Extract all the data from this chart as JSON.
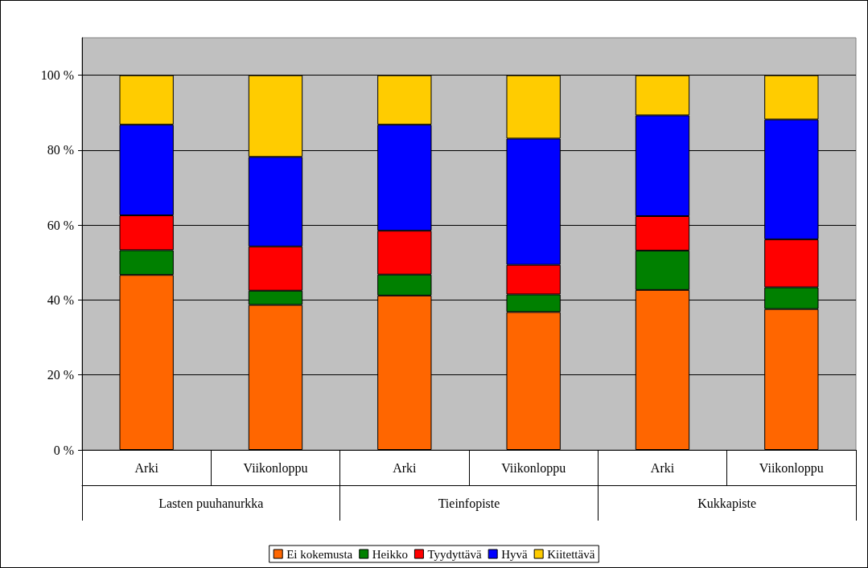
{
  "chart_data": {
    "type": "bar",
    "stacked": true,
    "categories": [
      "Arki",
      "Viikonloppu",
      "Arki",
      "Viikonloppu",
      "Arki",
      "Viikonloppu"
    ],
    "annotations": [
      "Lasten puuhanurkka",
      "Tieinfopiste",
      "Kukkapiste"
    ],
    "series": [
      {
        "name": "Ei kokemusta",
        "color": "#ff6600",
        "values": [
          46.7,
          38.7,
          41.2,
          36.8,
          42.7,
          37.6
        ]
      },
      {
        "name": "Heikko",
        "color": "#008000",
        "values": [
          6.6,
          3.8,
          5.6,
          4.7,
          10.5,
          5.8
        ]
      },
      {
        "name": "Tyydyttävä",
        "color": "#ff0000",
        "values": [
          9.3,
          11.8,
          11.7,
          7.9,
          9.2,
          12.8
        ]
      },
      {
        "name": "Hyvä",
        "color": "#0000ff",
        "values": [
          24.2,
          23.9,
          28.3,
          33.7,
          26.9,
          32.0
        ]
      },
      {
        "name": "Kiitettävä",
        "color": "#ffcc00",
        "values": [
          13.2,
          21.8,
          13.2,
          16.9,
          10.7,
          11.8
        ]
      }
    ],
    "ylim": [
      0,
      110
    ],
    "yticks": [
      {
        "value": 0,
        "label": "0 %"
      },
      {
        "value": 20,
        "label": "20 %"
      },
      {
        "value": 40,
        "label": "40 %"
      },
      {
        "value": 60,
        "label": "60 %"
      },
      {
        "value": 80,
        "label": "80 %"
      },
      {
        "value": 100,
        "label": "100 %"
      }
    ],
    "grid": "y",
    "legend": "bottom"
  }
}
